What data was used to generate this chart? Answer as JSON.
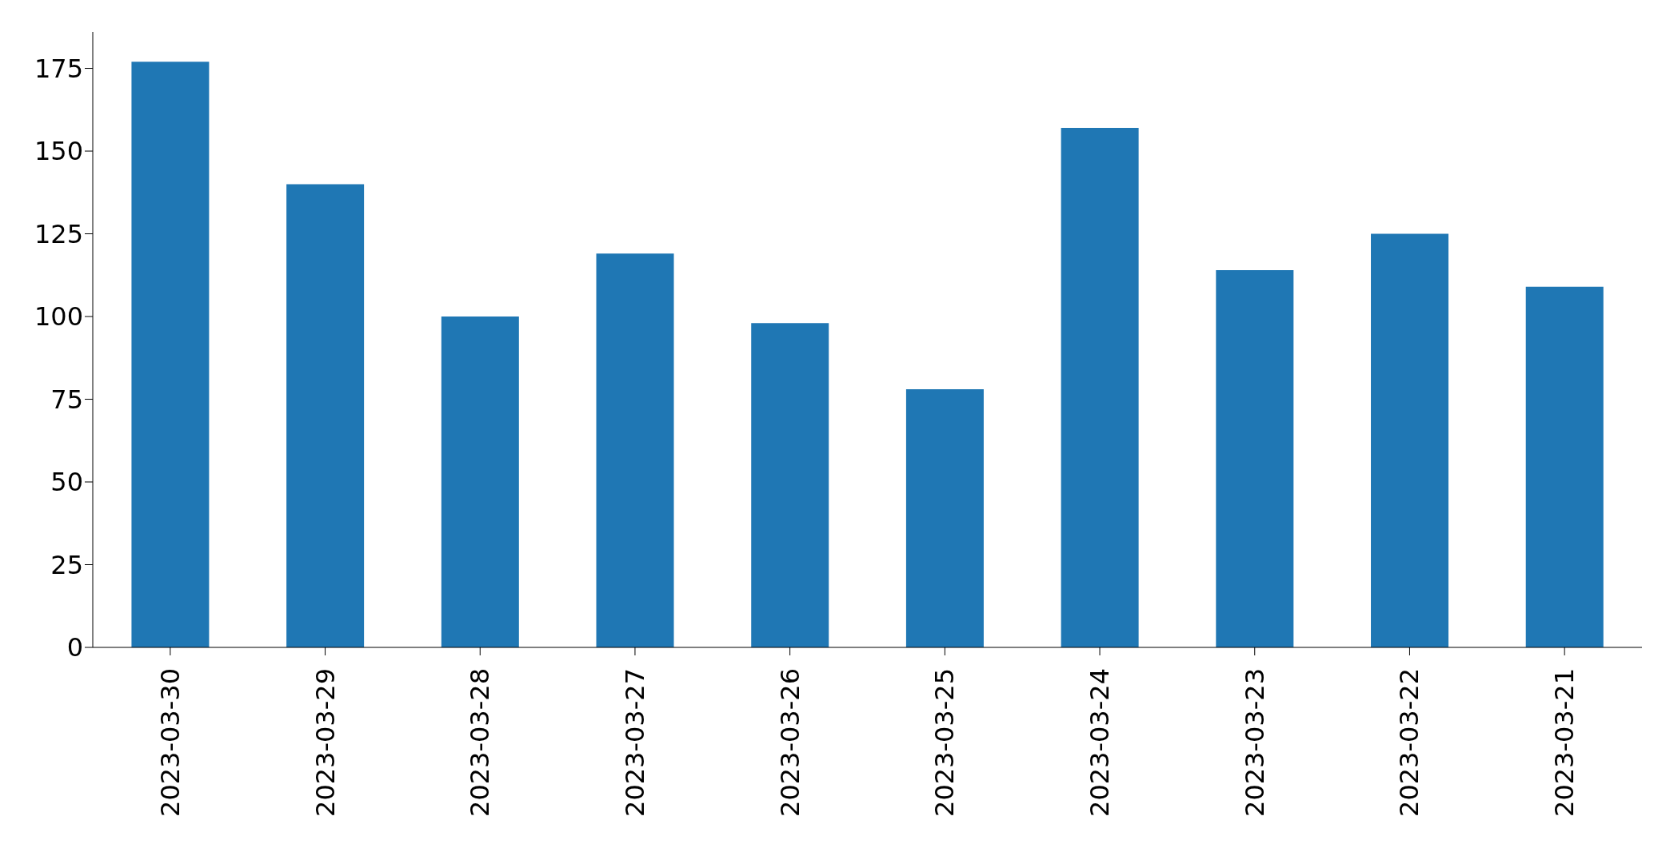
{
  "chart_data": {
    "type": "bar",
    "categories": [
      "2023-03-30",
      "2023-03-29",
      "2023-03-28",
      "2023-03-27",
      "2023-03-26",
      "2023-03-25",
      "2023-03-24",
      "2023-03-23",
      "2023-03-22",
      "2023-03-21"
    ],
    "values": [
      177,
      140,
      100,
      119,
      98,
      78,
      157,
      114,
      125,
      109
    ],
    "color": "#1f77b4",
    "ylim": [
      0,
      186
    ],
    "yticks": [
      0,
      25,
      50,
      75,
      100,
      125,
      150,
      175
    ],
    "grid": false,
    "legend": false
  }
}
